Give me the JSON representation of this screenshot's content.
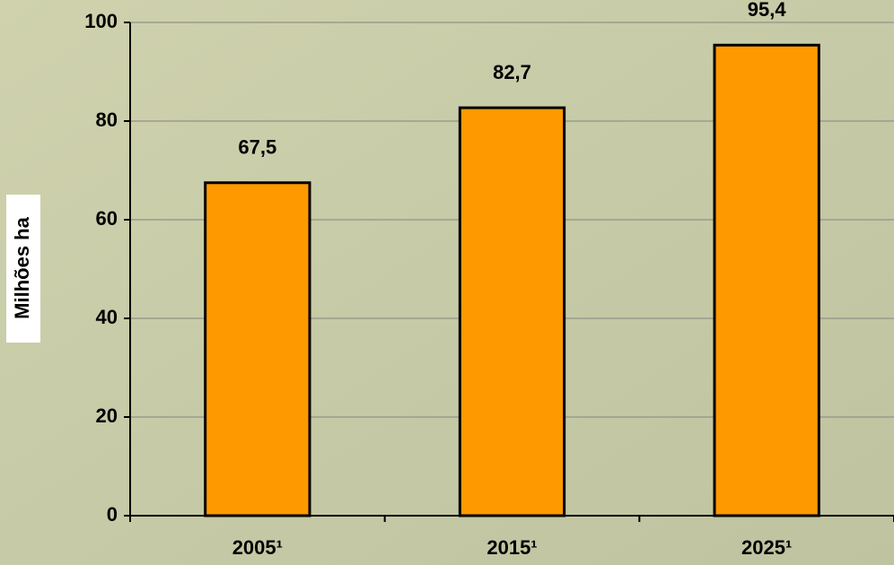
{
  "chart_data": {
    "type": "bar",
    "y_label": "Milhões ha",
    "categories": [
      "2005¹",
      "2015¹",
      "2025¹"
    ],
    "values": [
      67.5,
      82.7,
      95.4
    ],
    "value_labels": [
      "67,5",
      "82,7",
      "95,4"
    ],
    "color": "#ff9900",
    "ylim": [
      0,
      100
    ],
    "yticks": [
      0,
      20,
      40,
      60,
      80,
      100
    ],
    "grid": true
  }
}
